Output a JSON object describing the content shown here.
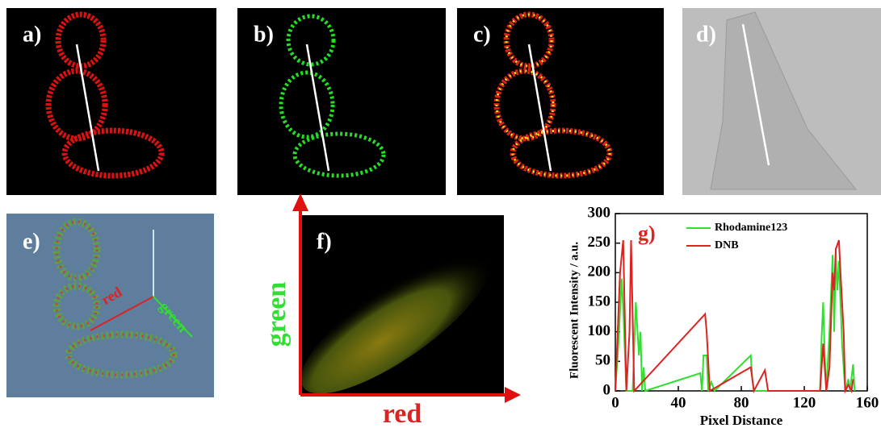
{
  "panels": [
    "a)",
    "b)",
    "c)",
    "d)",
    "e)",
    "f)"
  ],
  "surface_axes": {
    "x": "red",
    "y": "green"
  },
  "scatter_axes": {
    "x": "red",
    "y": "green"
  },
  "chart_data": {
    "type": "line",
    "title": "g)",
    "x_label": "Pixel Distance",
    "y_label": "Fluorescent Intensity / a.u.",
    "xlim": [
      0,
      160
    ],
    "xticks": [
      0,
      40,
      80,
      120,
      160
    ],
    "ylim": [
      0,
      300
    ],
    "yticks": [
      0,
      50,
      100,
      150,
      200,
      250,
      300
    ],
    "series": [
      {
        "name": "Rhodamine123",
        "color": "#33dd33",
        "x": [
          0,
          2,
          4,
          5,
          7,
          11,
          13,
          15,
          16,
          17,
          18,
          19,
          54,
          55,
          56,
          58,
          59,
          61,
          63,
          86,
          87,
          88,
          130,
          131,
          132,
          133,
          134,
          136,
          138,
          139,
          140,
          141,
          142,
          143,
          144,
          146,
          148,
          149,
          151,
          152
        ],
        "values": [
          0,
          80,
          190,
          140,
          0,
          0,
          150,
          60,
          100,
          0,
          40,
          0,
          30,
          0,
          60,
          60,
          0,
          15,
          0,
          60,
          20,
          0,
          0,
          90,
          150,
          60,
          0,
          100,
          230,
          100,
          235,
          170,
          220,
          150,
          80,
          0,
          20,
          0,
          45,
          0
        ]
      },
      {
        "name": "DNB",
        "color": "#dd2222",
        "x": [
          0,
          3,
          5,
          7,
          9,
          10,
          12,
          57,
          58,
          60,
          86,
          88,
          95,
          97,
          130,
          132,
          134,
          136,
          138,
          139,
          140,
          142,
          143,
          145,
          146,
          148,
          150,
          151
        ],
        "values": [
          0,
          200,
          255,
          0,
          100,
          255,
          0,
          130,
          100,
          0,
          40,
          0,
          35,
          0,
          0,
          80,
          0,
          40,
          200,
          170,
          240,
          255,
          200,
          100,
          0,
          10,
          0,
          20
        ]
      }
    ]
  }
}
